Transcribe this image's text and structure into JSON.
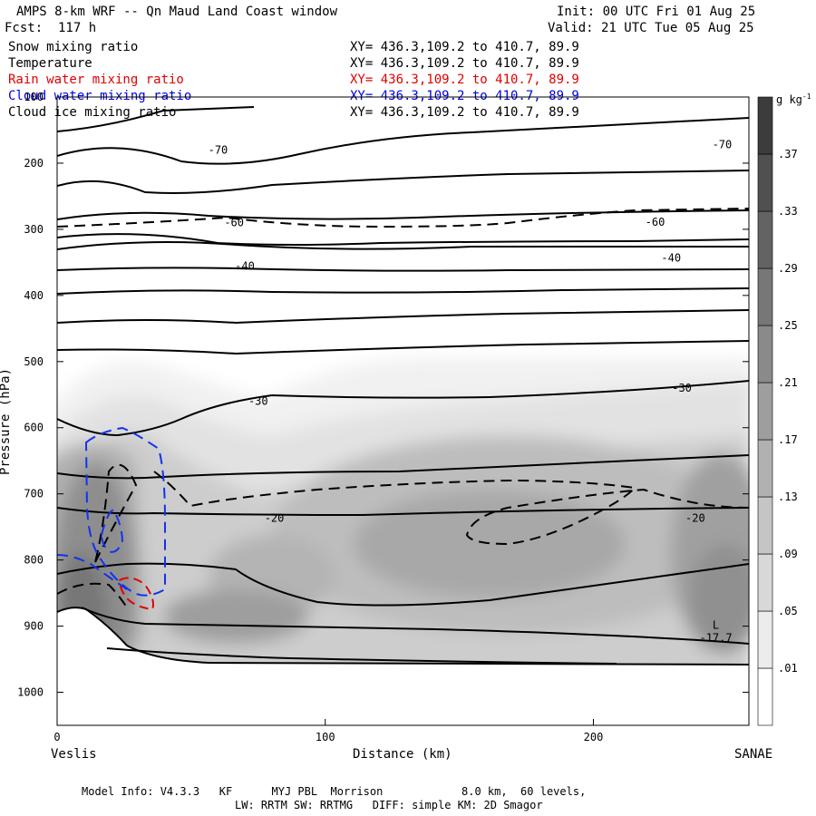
{
  "header": {
    "title": "AMPS 8-km WRF -- Qn Maud Land Coast window",
    "fcst": "Fcst:  117 h",
    "init": "Init: 00 UTC Fri 01 Aug 25",
    "valid": "Valid: 21 UTC Tue 05 Aug 25"
  },
  "fields": [
    {
      "name": "Snow mixing ratio",
      "xy": "XY= 436.3,109.2 to 410.7, 89.9",
      "color": "#000000"
    },
    {
      "name": "Temperature",
      "xy": "XY= 436.3,109.2 to 410.7, 89.9",
      "color": "#000000"
    },
    {
      "name": "Rain water mixing ratio",
      "xy": "XY= 436.3,109.2 to 410.7, 89.9",
      "color": "#e00000"
    },
    {
      "name": "Cloud water mixing ratio",
      "xy": "XY= 436.3,109.2 to 410.7, 89.9",
      "color": "#0000e0"
    },
    {
      "name": "Cloud ice mixing ratio",
      "xy": "XY= 436.3,109.2 to 410.7, 89.9",
      "color": "#000000"
    }
  ],
  "chart_data": {
    "type": "heatmap",
    "xlabel": "Distance (km)",
    "ylabel": "Pressure (hPa)",
    "xlim": [
      0,
      258
    ],
    "ylim": [
      1050,
      100
    ],
    "x_ticks": [
      0,
      100,
      200
    ],
    "y_ticks": [
      1000,
      900,
      800,
      700,
      600,
      500,
      400,
      300,
      200,
      100
    ],
    "x_endpoints": [
      "Veslis",
      "SANAE"
    ],
    "colorbar": {
      "units": "g kg",
      "units_sup": "-1",
      "levels": [
        0.01,
        0.05,
        0.09,
        0.13,
        0.17,
        0.21,
        0.25,
        0.29,
        0.33,
        0.37
      ]
    },
    "temperature_contours": [
      {
        "label": "-70",
        "x": 60,
        "p": 180
      },
      {
        "label": "-70",
        "x": 248,
        "p": 172
      },
      {
        "label": "-60",
        "x": 66,
        "p": 290
      },
      {
        "label": "-60",
        "x": 223,
        "p": 289
      },
      {
        "label": "-40",
        "x": 70,
        "p": 356
      },
      {
        "label": "-40",
        "x": 229,
        "p": 343
      },
      {
        "label": "-30",
        "x": 75,
        "p": 560
      },
      {
        "label": "-30",
        "x": 233,
        "p": 540
      },
      {
        "label": "-20",
        "x": 81,
        "p": 737
      },
      {
        "label": "-20",
        "x": 238,
        "p": 737
      }
    ],
    "min_marker": {
      "label": "L",
      "value": "-17.7",
      "x": 245,
      "p": 918
    }
  },
  "footer": {
    "line1": "Model Info: V4.3.3   KF      MYJ PBL  Morrison            8.0 km,  60 levels,",
    "line2": "LW: RRTM SW: RRTMG   DIFF: simple KM: 2D Smagor"
  }
}
